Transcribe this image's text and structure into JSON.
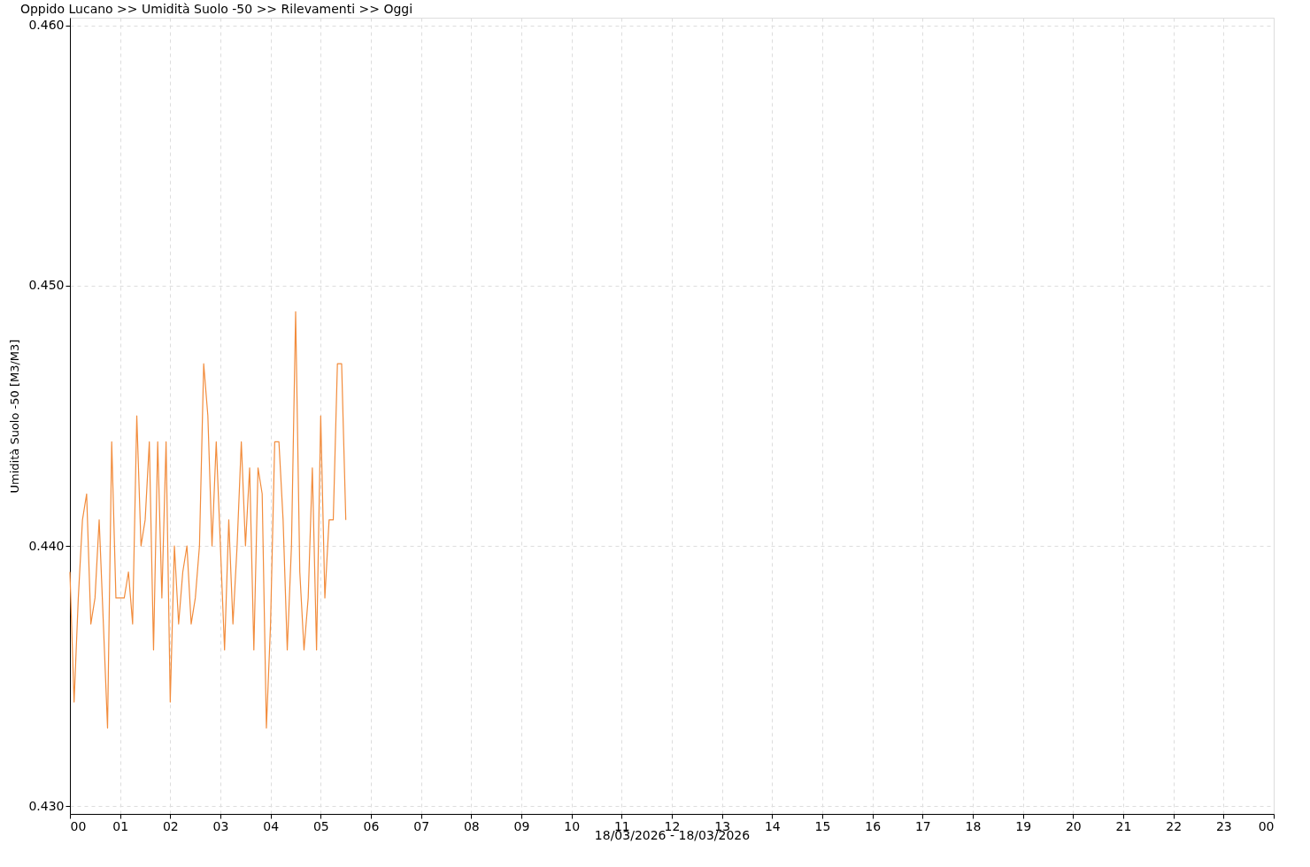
{
  "chart_data": {
    "type": "line",
    "title": "Oppido Lucano >> Umidità Suolo -50 >> Rilevamenti >> Oggi",
    "xlabel": "18/03/2026 - 18/03/2026",
    "ylabel": "Umidità Suolo -50 [M3/M3]",
    "x": [
      0,
      0.083,
      0.167,
      0.25,
      0.333,
      0.417,
      0.5,
      0.583,
      0.667,
      0.75,
      0.833,
      0.917,
      1,
      1.083,
      1.167,
      1.25,
      1.333,
      1.417,
      1.5,
      1.583,
      1.667,
      1.75,
      1.833,
      1.917,
      2,
      2.083,
      2.167,
      2.25,
      2.333,
      2.417,
      2.5,
      2.583,
      2.667,
      2.75,
      2.833,
      2.917,
      3,
      3.083,
      3.167,
      3.25,
      3.333,
      3.417,
      3.5,
      3.583,
      3.667,
      3.75,
      3.833,
      3.917,
      4,
      4.083,
      4.167,
      4.25,
      4.333,
      4.417,
      4.5,
      4.583,
      4.667,
      4.75,
      4.833,
      4.917,
      5,
      5.083,
      5.167,
      5.25,
      5.333,
      5.417,
      5.5
    ],
    "series": [
      {
        "color": "#f28c3c",
        "values": [
          0.439,
          0.434,
          0.438,
          0.441,
          0.442,
          0.437,
          0.438,
          0.441,
          0.437,
          0.433,
          0.444,
          0.438,
          0.438,
          0.438,
          0.439,
          0.437,
          0.445,
          0.44,
          0.441,
          0.444,
          0.436,
          0.444,
          0.438,
          0.444,
          0.434,
          0.44,
          0.437,
          0.439,
          0.44,
          0.437,
          0.438,
          0.44,
          0.447,
          0.445,
          0.44,
          0.444,
          0.44,
          0.436,
          0.441,
          0.437,
          0.44,
          0.444,
          0.44,
          0.443,
          0.436,
          0.443,
          0.442,
          0.433,
          0.437,
          0.444,
          0.444,
          0.441,
          0.436,
          0.44,
          0.449,
          0.439,
          0.436,
          0.438,
          0.443,
          0.436,
          0.445,
          0.438,
          0.441,
          0.441,
          0.447,
          0.447,
          0.441
        ]
      }
    ],
    "xlim": [
      0,
      24
    ],
    "xticks": [
      {
        "value": 0,
        "label": "00"
      },
      {
        "value": 1,
        "label": "01"
      },
      {
        "value": 2,
        "label": "02"
      },
      {
        "value": 3,
        "label": "03"
      },
      {
        "value": 4,
        "label": "04"
      },
      {
        "value": 5,
        "label": "05"
      },
      {
        "value": 6,
        "label": "06"
      },
      {
        "value": 7,
        "label": "07"
      },
      {
        "value": 8,
        "label": "08"
      },
      {
        "value": 9,
        "label": "09"
      },
      {
        "value": 10,
        "label": "10"
      },
      {
        "value": 11,
        "label": "11"
      },
      {
        "value": 12,
        "label": "12"
      },
      {
        "value": 13,
        "label": "13"
      },
      {
        "value": 14,
        "label": "14"
      },
      {
        "value": 15,
        "label": "15"
      },
      {
        "value": 16,
        "label": "16"
      },
      {
        "value": 17,
        "label": "17"
      },
      {
        "value": 18,
        "label": "18"
      },
      {
        "value": 19,
        "label": "19"
      },
      {
        "value": 20,
        "label": "20"
      },
      {
        "value": 21,
        "label": "21"
      },
      {
        "value": 22,
        "label": "22"
      },
      {
        "value": 23,
        "label": "23"
      },
      {
        "value": 24,
        "label": "00"
      }
    ],
    "ylim": [
      0.4297,
      0.4603
    ],
    "yticks": [
      {
        "value": 0.43,
        "label": "0.430"
      },
      {
        "value": 0.44,
        "label": "0.440"
      },
      {
        "value": 0.45,
        "label": "0.450"
      },
      {
        "value": 0.46,
        "label": "0.460"
      }
    ],
    "grid": true,
    "marker": "none",
    "line_style": "solid"
  }
}
